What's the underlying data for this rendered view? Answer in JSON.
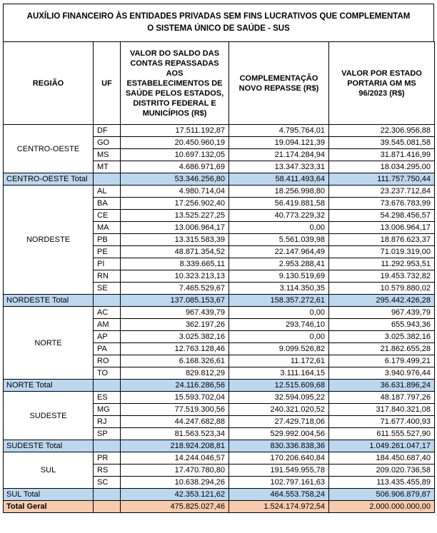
{
  "title": {
    "line1": "AUXÍLIO FINANCEIRO ÀS ENTIDADES PRIVADAS SEM FINS LUCRATIVOS QUE COMPLEMENTAM",
    "line2": "O SISTEMA ÚNICO DE SAÚDE - SUS"
  },
  "colors": {
    "region_total_bg": "#BDD7EE",
    "grand_total_bg": "#F8CBAD",
    "border": "#000000"
  },
  "table": {
    "headers": {
      "region": "REGIÃO",
      "uf": "UF",
      "saldo": "VALOR DO SALDO DAS CONTAS REPASSADAS AOS ESTABELECIMENTOS DE SAÚDE PELOS ESTADOS, DISTRITO FEDERAL E MUNICÍPIOS (R$)",
      "complementacao": "COMPLEMENTAÇÃO NOVO REPASSE (R$)",
      "valor_estado": "VALOR POR ESTADO PORTARIA GM MS 96/2023  (R$)"
    },
    "groups": [
      {
        "region": "CENTRO-OESTE",
        "rows": [
          {
            "uf": "DF",
            "saldo": "17.511.192,87",
            "complementacao": "4.795.764,01",
            "valor": "22.306.956,88"
          },
          {
            "uf": "GO",
            "saldo": "20.450.960,19",
            "complementacao": "19.094.121,39",
            "valor": "39.545.081,58"
          },
          {
            "uf": "MS",
            "saldo": "10.697.132,05",
            "complementacao": "21.174.284,94",
            "valor": "31.871.416,99"
          },
          {
            "uf": "MT",
            "saldo": "4.686.971,69",
            "complementacao": "13.347.323,31",
            "valor": "18.034.295,00"
          }
        ],
        "total": {
          "label": "CENTRO-OESTE Total",
          "saldo": "53.346.256,80",
          "complementacao": "58.411.493,64",
          "valor": "111.757.750,44"
        }
      },
      {
        "region": "NORDESTE",
        "rows": [
          {
            "uf": "AL",
            "saldo": "4.980.714,04",
            "complementacao": "18.256.998,80",
            "valor": "23.237.712,84"
          },
          {
            "uf": "BA",
            "saldo": "17.256.902,40",
            "complementacao": "56.419.881,58",
            "valor": "73.676.783,99"
          },
          {
            "uf": "CE",
            "saldo": "13.525.227,25",
            "complementacao": "40.773.229,32",
            "valor": "54.298.456,57"
          },
          {
            "uf": "MA",
            "saldo": "13.006.964,17",
            "complementacao": "0,00",
            "valor": "13.006.964,17"
          },
          {
            "uf": "PB",
            "saldo": "13.315.583,39",
            "complementacao": "5.561.039,98",
            "valor": "18.876.623,37"
          },
          {
            "uf": "PE",
            "saldo": "48.871.354,52",
            "complementacao": "22.147.964,49",
            "valor": "71.019.319,00"
          },
          {
            "uf": "PI",
            "saldo": "8.339.665,11",
            "complementacao": "2.953.288,41",
            "valor": "11.292.953,51"
          },
          {
            "uf": "RN",
            "saldo": "10.323.213,13",
            "complementacao": "9.130.519,69",
            "valor": "19.453.732,82"
          },
          {
            "uf": "SE",
            "saldo": "7.465.529,67",
            "complementacao": "3.114.350,35",
            "valor": "10.579.880,02"
          }
        ],
        "total": {
          "label": "NORDESTE Total",
          "saldo": "137.085.153,67",
          "complementacao": "158.357.272,61",
          "valor": "295.442.426,28"
        }
      },
      {
        "region": "NORTE",
        "rows": [
          {
            "uf": "AC",
            "saldo": "967.439,79",
            "complementacao": "0,00",
            "valor": "967.439,79"
          },
          {
            "uf": "AM",
            "saldo": "362.197,26",
            "complementacao": "293.746,10",
            "valor": "655.943,36"
          },
          {
            "uf": "AP",
            "saldo": "3.025.382,16",
            "complementacao": "0,00",
            "valor": "3.025.382,16"
          },
          {
            "uf": "PA",
            "saldo": "12.763.128,46",
            "complementacao": "9.099.526,82",
            "valor": "21.862.655,28"
          },
          {
            "uf": "RO",
            "saldo": "6.168.326,61",
            "complementacao": "11.172,61",
            "valor": "6.179.499,21"
          },
          {
            "uf": "TO",
            "saldo": "829.812,29",
            "complementacao": "3.111.164,15",
            "valor": "3.940.976,44"
          }
        ],
        "total": {
          "label": "NORTE Total",
          "saldo": "24.116.286,56",
          "complementacao": "12.515.609,68",
          "valor": "36.631.896,24"
        }
      },
      {
        "region": "SUDESTE",
        "rows": [
          {
            "uf": "ES",
            "saldo": "15.593.702,04",
            "complementacao": "32.594.095,22",
            "valor": "48.187.797,26"
          },
          {
            "uf": "MG",
            "saldo": "77.519.300,56",
            "complementacao": "240.321.020,52",
            "valor": "317.840.321,08"
          },
          {
            "uf": "RJ",
            "saldo": "44.247.682,88",
            "complementacao": "27.429.718,06",
            "valor": "71.677.400,93"
          },
          {
            "uf": "SP",
            "saldo": "81.563.523,34",
            "complementacao": "529.992.004,56",
            "valor": "611.555.527,90"
          }
        ],
        "total": {
          "label": "SUDESTE Total",
          "saldo": "218.924.208,81",
          "complementacao": "830.336.838,36",
          "valor": "1.049.261.047,17"
        }
      },
      {
        "region": "SUL",
        "rows": [
          {
            "uf": "PR",
            "saldo": "14.244.046,57",
            "complementacao": "170.206.640,84",
            "valor": "184.450.687,40"
          },
          {
            "uf": "RS",
            "saldo": "17.470.780,80",
            "complementacao": "191.549.955,78",
            "valor": "209.020.736,58"
          },
          {
            "uf": "SC",
            "saldo": "10.638.294,26",
            "complementacao": "102.797.161,63",
            "valor": "113.435.455,89"
          }
        ],
        "total": {
          "label": "SUL Total",
          "saldo": "42.353.121,62",
          "complementacao": "464.553.758,24",
          "valor": "506.906.879,87"
        }
      }
    ],
    "grand_total": {
      "label": "Total Geral",
      "saldo": "475.825.027,46",
      "complementacao": "1.524.174.972,54",
      "valor": "2.000.000.000,00"
    }
  }
}
